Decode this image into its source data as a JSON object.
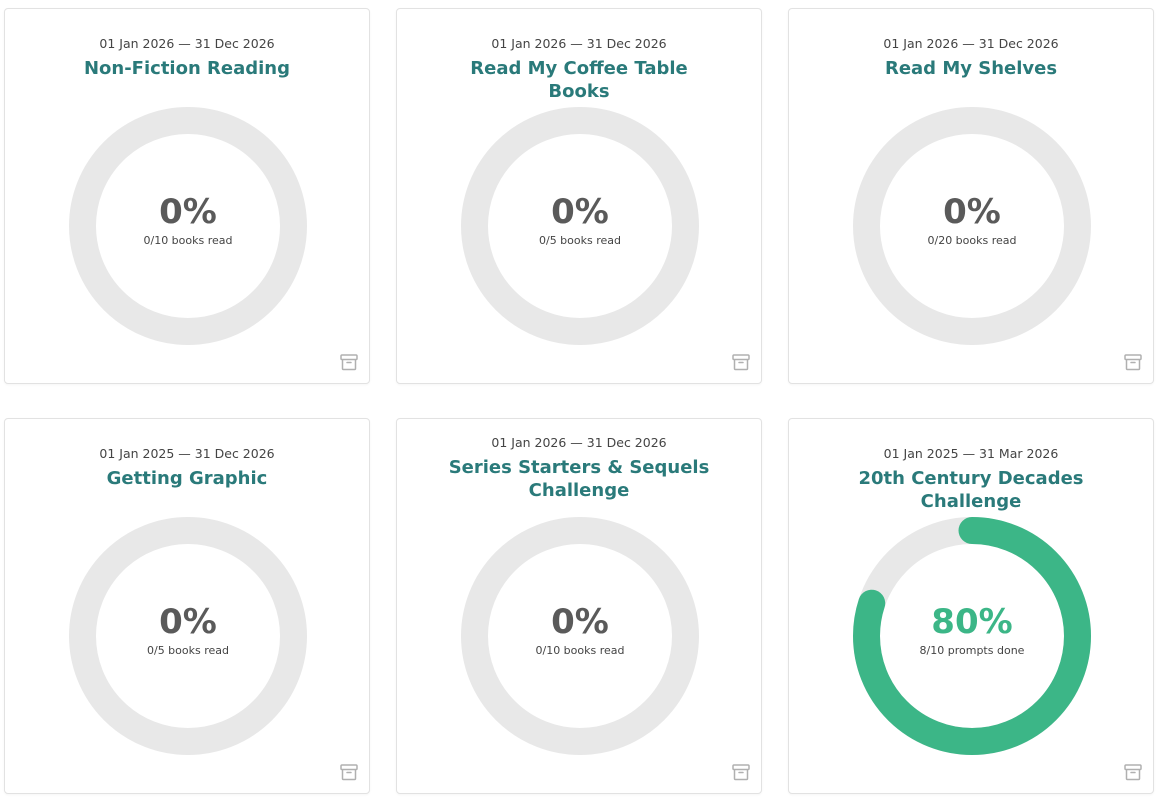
{
  "colors": {
    "title": "#2a7a7a",
    "track": "#e8e8e8",
    "progress": "#3cb687",
    "pct_default": "#5a5a5a",
    "icon": "#b0b0b0"
  },
  "challenges": [
    {
      "dates": "01 Jan 2026 — 31 Dec 2026",
      "title": "Non-Fiction Reading",
      "percent_label": "0%",
      "progress": 0,
      "subtitle": "0/10 books read",
      "archive_icon": "archive-icon"
    },
    {
      "dates": "01 Jan 2026 — 31 Dec 2026",
      "title": "Read My Coffee Table Books",
      "percent_label": "0%",
      "progress": 0,
      "subtitle": "0/5 books read",
      "archive_icon": "archive-icon"
    },
    {
      "dates": "01 Jan 2026 — 31 Dec 2026",
      "title": "Read My Shelves",
      "percent_label": "0%",
      "progress": 0,
      "subtitle": "0/20 books read",
      "archive_icon": "archive-icon"
    },
    {
      "dates": "01 Jan 2025 — 31 Dec 2026",
      "title": "Getting Graphic",
      "percent_label": "0%",
      "progress": 0,
      "subtitle": "0/5 books read",
      "archive_icon": "archive-icon"
    },
    {
      "dates": "01 Jan 2026 — 31 Dec 2026",
      "title": "Series Starters & Sequels Challenge",
      "percent_label": "0%",
      "progress": 0,
      "subtitle": "0/10 books read",
      "archive_icon": "archive-icon"
    },
    {
      "dates": "01 Jan 2025 — 31 Mar 2026",
      "title": "20th Century Decades Challenge",
      "percent_label": "80%",
      "progress": 0.8,
      "subtitle": "8/10 prompts done",
      "archive_icon": "archive-icon"
    }
  ]
}
